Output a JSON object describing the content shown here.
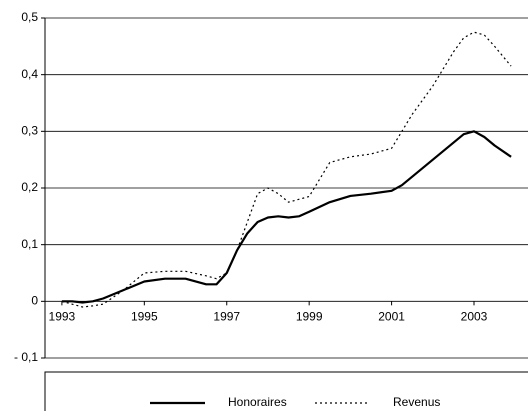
{
  "chart_data": {
    "type": "line",
    "x": [
      1993,
      1993.25,
      1993.5,
      1993.75,
      1994,
      1994.5,
      1995,
      1995.5,
      1996,
      1996.5,
      1996.75,
      1997,
      1997.25,
      1997.5,
      1997.75,
      1998,
      1998.25,
      1998.5,
      1998.75,
      1999,
      1999.5,
      2000,
      2000.5,
      2001,
      2001.25,
      2001.5,
      2002,
      2002.5,
      2002.75,
      2003,
      2003.25,
      2003.5,
      2003.9
    ],
    "series": [
      {
        "name": "Honoraires",
        "color": "#000000",
        "style": "solid",
        "values": [
          0,
          0,
          -0.002,
          0,
          0.005,
          0.02,
          0.035,
          0.04,
          0.04,
          0.03,
          0.03,
          0.05,
          0.09,
          0.12,
          0.14,
          0.148,
          0.15,
          0.148,
          0.15,
          0.158,
          0.175,
          0.186,
          0.19,
          0.195,
          0.205,
          0.22,
          0.25,
          0.28,
          0.295,
          0.3,
          0.29,
          0.275,
          0.255
        ]
      },
      {
        "name": "Revenus",
        "color": "#000000",
        "style": "dotted",
        "values": [
          0,
          -0.005,
          -0.01,
          -0.008,
          -0.005,
          0.02,
          0.05,
          0.053,
          0.053,
          0.045,
          0.04,
          0.05,
          0.09,
          0.14,
          0.19,
          0.2,
          0.19,
          0.175,
          0.18,
          0.185,
          0.245,
          0.255,
          0.26,
          0.27,
          0.3,
          0.33,
          0.38,
          0.44,
          0.465,
          0.475,
          0.47,
          0.45,
          0.415
        ]
      }
    ],
    "xlim": [
      1992.59,
      2004.31
    ],
    "xticks": [
      1993,
      1995,
      1997,
      1999,
      2001,
      2003
    ],
    "ylim": [
      -0.1,
      0.5
    ],
    "yticks": [
      {
        "value": -0.1,
        "label": "- 0,1"
      },
      {
        "value": 0,
        "label": "0"
      },
      {
        "value": 0.1,
        "label": "0,1"
      },
      {
        "value": 0.2,
        "label": "0,2"
      },
      {
        "value": 0.3,
        "label": "0,3"
      },
      {
        "value": 0.4,
        "label": "0,4"
      },
      {
        "value": 0.5,
        "label": "0,5"
      }
    ],
    "grid": true,
    "legend": "bottom"
  }
}
